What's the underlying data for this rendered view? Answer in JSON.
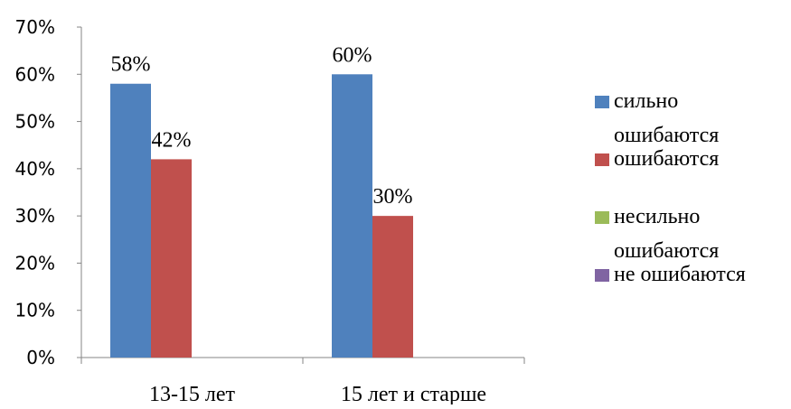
{
  "chart_data": {
    "type": "bar",
    "title": "",
    "xlabel": "",
    "ylabel": "",
    "categories": [
      "13-15 лет",
      "15 лет и старше"
    ],
    "series": [
      {
        "name": "сильно ошибаются",
        "color": "#4F81BD",
        "values": [
          58,
          60
        ],
        "labels": [
          "58%",
          "60%"
        ]
      },
      {
        "name": "ошибаются",
        "color": "#C0504D",
        "values": [
          42,
          30
        ],
        "labels": [
          "42%",
          "30%"
        ]
      },
      {
        "name": "несильно ошибаются",
        "color": "#9BBB59",
        "values": [
          null,
          null
        ],
        "labels": [
          "",
          ""
        ]
      },
      {
        "name": "не ошибаются",
        "color": "#8064A2",
        "values": [
          null,
          null
        ],
        "labels": [
          "",
          ""
        ]
      }
    ],
    "ylim": [
      0,
      70
    ],
    "y_ticks": [
      "0%",
      "10%",
      "20%",
      "30%",
      "40%",
      "50%",
      "60%",
      "70%"
    ],
    "grid": false,
    "legend_position": "right"
  }
}
